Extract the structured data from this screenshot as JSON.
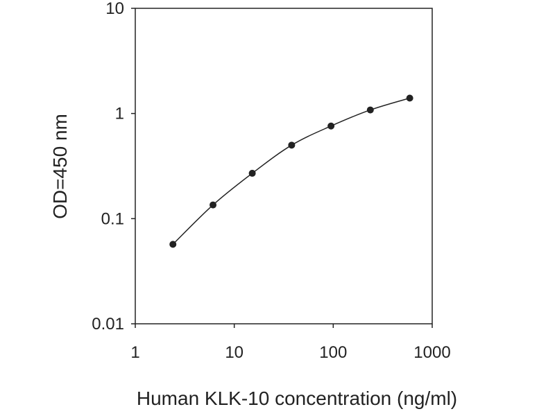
{
  "chart_data": {
    "type": "scatter",
    "title": "",
    "xlabel": "Human KLK-10 concentration (ng/ml)",
    "ylabel": "OD=450 nm",
    "x_scale": "log",
    "y_scale": "log",
    "xlim": [
      1,
      1000
    ],
    "ylim": [
      0.01,
      10
    ],
    "x_ticks": [
      1,
      10,
      100,
      1000
    ],
    "y_ticks": [
      0.01,
      0.1,
      1,
      10
    ],
    "x_tick_labels": [
      "1",
      "10",
      "100",
      "1000"
    ],
    "y_tick_labels": [
      "0.01",
      "0.1",
      "1",
      "10"
    ],
    "grid": false,
    "legend": "none",
    "series": [
      {
        "x": [
          2.4,
          6.1,
          15.2,
          38.0,
          95.0,
          237.0,
          593.0
        ],
        "y": [
          0.057,
          0.135,
          0.27,
          0.5,
          0.76,
          1.08,
          1.4
        ],
        "color": "#222222",
        "line": "smooth",
        "marker": "circle"
      }
    ]
  }
}
